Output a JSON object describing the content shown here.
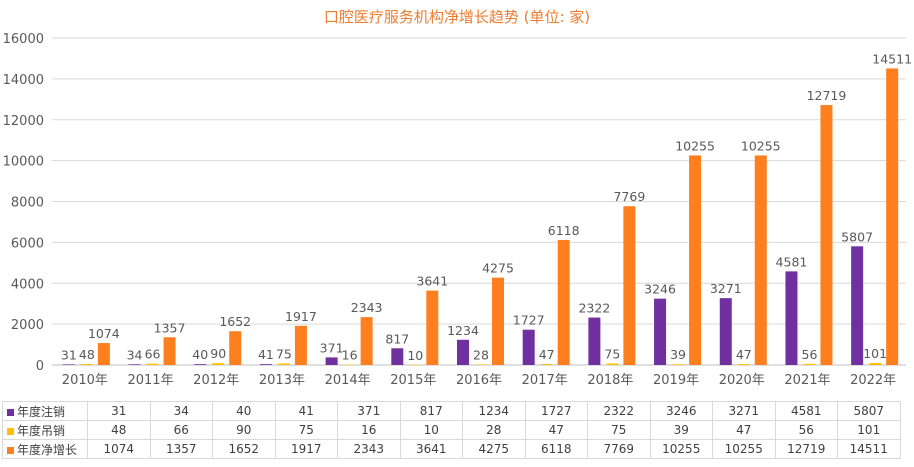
{
  "chart_data": {
    "type": "bar",
    "title": "口腔医疗服务机构净增长趋势 (单位: 家)",
    "categories": [
      "2010年",
      "2011年",
      "2012年",
      "2013年",
      "2014年",
      "2015年",
      "2016年",
      "2017年",
      "2018年",
      "2019年",
      "2020年",
      "2021年",
      "2022年"
    ],
    "series": [
      {
        "name": "年度注销",
        "color": "#7030A0",
        "values": [
          31,
          34,
          40,
          41,
          371,
          817,
          1234,
          1727,
          2322,
          3246,
          3271,
          4581,
          5807
        ]
      },
      {
        "name": "年度吊销",
        "color": "#FFC000",
        "values": [
          48,
          66,
          90,
          75,
          16,
          10,
          28,
          47,
          75,
          39,
          47,
          56,
          101
        ]
      },
      {
        "name": "年度净增长",
        "color": "#FF7F1E",
        "values": [
          1074,
          1357,
          1652,
          1917,
          2343,
          3641,
          4275,
          6118,
          7769,
          10255,
          10255,
          12719,
          14511
        ]
      }
    ],
    "ylim": [
      0,
      16000
    ],
    "yticks": [
      0,
      2000,
      4000,
      6000,
      8000,
      10000,
      12000,
      14000,
      16000
    ],
    "grid": true,
    "legend": "data-table"
  }
}
